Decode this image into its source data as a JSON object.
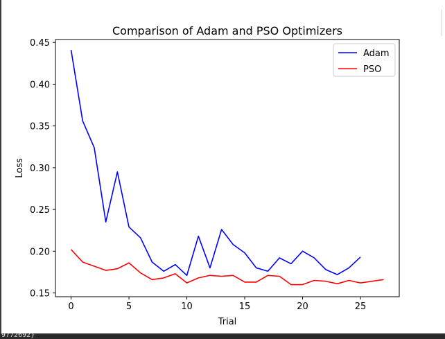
{
  "chart_data": {
    "type": "line",
    "title": "Comparison of Adam and PSO Optimizers",
    "xlabel": "Trial",
    "ylabel": "Loss",
    "xlim": [
      -1.35,
      28.35
    ],
    "ylim": [
      0.1455,
      0.4535
    ],
    "xticks": [
      0,
      5,
      10,
      15,
      20,
      25
    ],
    "yticks": [
      0.15,
      0.2,
      0.25,
      0.3,
      0.35,
      0.4,
      0.45
    ],
    "grid": false,
    "legend_position": "top-right",
    "series": [
      {
        "name": "Adam",
        "color": "#0000ff",
        "x": [
          0,
          1,
          2,
          3,
          4,
          5,
          6,
          7,
          8,
          9,
          10,
          11,
          12,
          13,
          14,
          15,
          16,
          17,
          18,
          19,
          20,
          21,
          22,
          23,
          24,
          25
        ],
        "values": [
          0.441,
          0.356,
          0.324,
          0.235,
          0.295,
          0.229,
          0.216,
          0.187,
          0.176,
          0.184,
          0.171,
          0.218,
          0.18,
          0.226,
          0.208,
          0.198,
          0.18,
          0.176,
          0.192,
          0.185,
          0.2,
          0.192,
          0.178,
          0.172,
          0.18,
          0.193
        ]
      },
      {
        "name": "PSO",
        "color": "#ff0000",
        "x": [
          0,
          1,
          2,
          3,
          4,
          5,
          6,
          7,
          8,
          9,
          10,
          11,
          12,
          13,
          14,
          15,
          16,
          17,
          18,
          19,
          20,
          21,
          22,
          23,
          24,
          25,
          26,
          27
        ],
        "values": [
          0.202,
          0.187,
          0.182,
          0.177,
          0.179,
          0.186,
          0.174,
          0.166,
          0.168,
          0.173,
          0.162,
          0.168,
          0.171,
          0.17,
          0.171,
          0.163,
          0.163,
          0.171,
          0.17,
          0.16,
          0.16,
          0.165,
          0.164,
          0.161,
          0.165,
          0.162,
          0.164,
          0.166
        ]
      }
    ]
  },
  "console": {
    "text": "9772692}"
  }
}
